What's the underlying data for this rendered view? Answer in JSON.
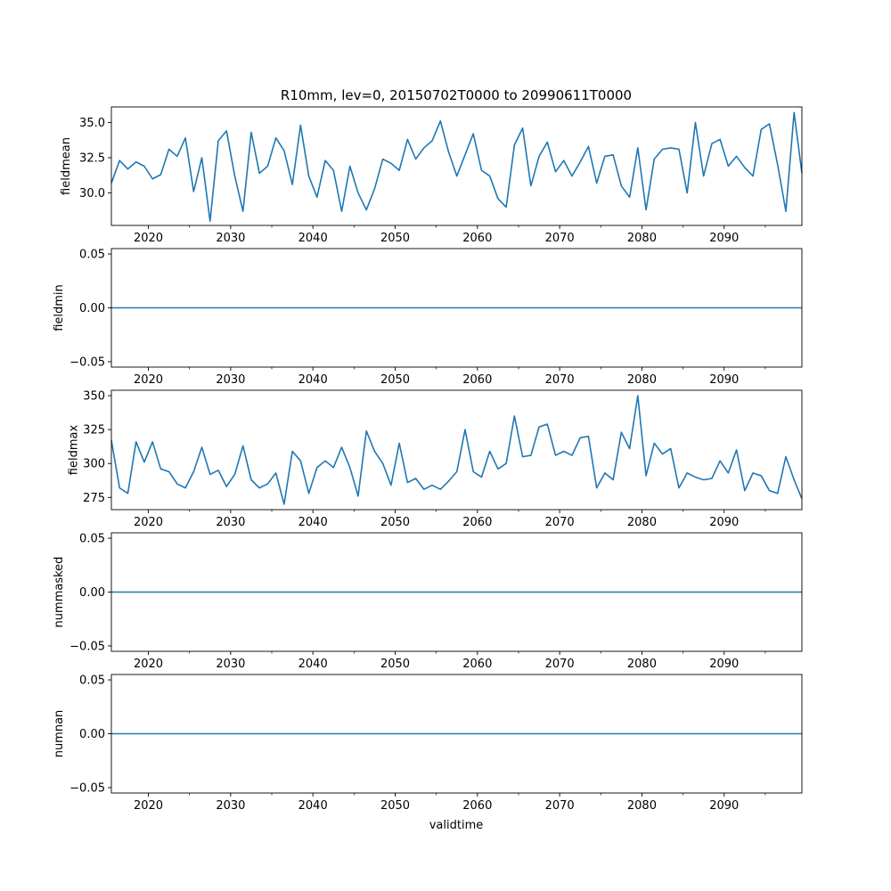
{
  "figure": {
    "title": "R10mm, lev=0, 20150702T0000 to 20990611T0000",
    "xlabel": "validtime"
  },
  "chart_data": {
    "type": "line",
    "title": "R10mm, lev=0, 20150702T0000 to 20990611T0000",
    "xlabel": "validtime",
    "line_color": "#1f77b4",
    "xlim": [
      2015.5,
      2099.45
    ],
    "x_major_ticks": [
      2020,
      2030,
      2040,
      2050,
      2060,
      2070,
      2080,
      2090
    ],
    "x_major_labels": [
      "2020",
      "2030",
      "2040",
      "2050",
      "2060",
      "2070",
      "2080",
      "2090"
    ],
    "x_minor_ticks": [
      2025,
      2035,
      2045,
      2055,
      2065,
      2075,
      2085,
      2095
    ],
    "x_years": [
      2015.5,
      2016.5,
      2017.5,
      2018.5,
      2019.5,
      2020.5,
      2021.5,
      2022.5,
      2023.5,
      2024.5,
      2025.5,
      2026.5,
      2027.5,
      2028.5,
      2029.5,
      2030.5,
      2031.5,
      2032.5,
      2033.5,
      2034.5,
      2035.5,
      2036.5,
      2037.5,
      2038.5,
      2039.5,
      2040.5,
      2041.5,
      2042.5,
      2043.5,
      2044.5,
      2045.5,
      2046.5,
      2047.5,
      2048.5,
      2049.5,
      2050.5,
      2051.5,
      2052.5,
      2053.5,
      2054.5,
      2055.5,
      2056.5,
      2057.5,
      2058.5,
      2059.5,
      2060.5,
      2061.5,
      2062.5,
      2063.5,
      2064.5,
      2065.5,
      2066.5,
      2067.5,
      2068.5,
      2069.5,
      2070.5,
      2071.5,
      2072.5,
      2073.5,
      2074.5,
      2075.5,
      2076.5,
      2077.5,
      2078.5,
      2079.5,
      2080.5,
      2081.5,
      2082.5,
      2083.5,
      2084.5,
      2085.5,
      2086.5,
      2087.5,
      2088.5,
      2089.5,
      2090.5,
      2091.5,
      2092.5,
      2093.5,
      2094.5,
      2095.5,
      2096.5,
      2097.5,
      2098.5,
      2099.45
    ],
    "subplots": [
      {
        "ylabel": "fieldmean",
        "ylim": [
          27.7,
          36.1
        ],
        "y_ticks": [
          30.0,
          32.5,
          35.0
        ],
        "y_tick_labels": [
          "30.0",
          "32.5",
          "35.0"
        ],
        "values": [
          30.7,
          32.3,
          31.7,
          32.2,
          31.9,
          31.0,
          31.3,
          33.1,
          32.6,
          33.9,
          30.1,
          32.5,
          28.0,
          33.7,
          34.4,
          31.2,
          28.7,
          34.3,
          31.4,
          31.9,
          33.9,
          33.0,
          30.6,
          34.8,
          31.2,
          29.7,
          32.3,
          31.6,
          28.7,
          31.9,
          30.0,
          28.8,
          30.3,
          32.4,
          32.1,
          31.6,
          33.8,
          32.4,
          33.2,
          33.7,
          35.1,
          32.9,
          31.2,
          32.7,
          34.2,
          31.6,
          31.2,
          29.6,
          29.0,
          33.4,
          34.6,
          30.5,
          32.6,
          33.6,
          31.5,
          32.3,
          31.2,
          32.2,
          33.3,
          30.7,
          32.6,
          32.7,
          30.5,
          29.7,
          33.2,
          28.8,
          32.4,
          33.1,
          33.2,
          33.1,
          30.0,
          35.0,
          31.2,
          33.5,
          33.8,
          31.9,
          32.6,
          31.8,
          31.2,
          34.5,
          34.9,
          32.0,
          28.7,
          35.7,
          31.4
        ]
      },
      {
        "ylabel": "fieldmin",
        "ylim": [
          -0.055,
          0.055
        ],
        "y_ticks": [
          -0.05,
          0.0,
          0.05
        ],
        "y_tick_labels": [
          "−0.05",
          "0.00",
          "0.05"
        ],
        "constant_value": 0.0
      },
      {
        "ylabel": "fieldmax",
        "ylim": [
          266,
          354
        ],
        "y_ticks": [
          275,
          300,
          325,
          350
        ],
        "y_tick_labels": [
          "275",
          "300",
          "325",
          "350"
        ],
        "values": [
          317,
          282,
          278,
          316,
          301,
          316,
          296,
          294,
          285,
          282,
          294,
          312,
          292,
          295,
          283,
          292,
          313,
          288,
          282,
          285,
          293,
          270,
          309,
          302,
          278,
          297,
          302,
          297,
          312,
          297,
          276,
          324,
          309,
          300,
          284,
          315,
          286,
          289,
          281,
          284,
          281,
          287,
          294,
          325,
          294,
          290,
          309,
          296,
          300,
          335,
          305,
          306,
          327,
          329,
          306,
          309,
          306,
          319,
          320,
          282,
          293,
          288,
          323,
          311,
          350,
          291,
          315,
          307,
          311,
          282,
          293,
          290,
          288,
          289,
          302,
          293,
          310,
          280,
          293,
          291,
          280,
          278,
          305,
          288,
          274
        ]
      },
      {
        "ylabel": "nummasked",
        "ylim": [
          -0.055,
          0.055
        ],
        "y_ticks": [
          -0.05,
          0.0,
          0.05
        ],
        "y_tick_labels": [
          "−0.05",
          "0.00",
          "0.05"
        ],
        "constant_value": 0.0
      },
      {
        "ylabel": "numnan",
        "ylim": [
          -0.055,
          0.055
        ],
        "y_ticks": [
          -0.05,
          0.0,
          0.05
        ],
        "y_tick_labels": [
          "−0.05",
          "0.00",
          "0.05"
        ],
        "constant_value": 0.0
      }
    ]
  }
}
